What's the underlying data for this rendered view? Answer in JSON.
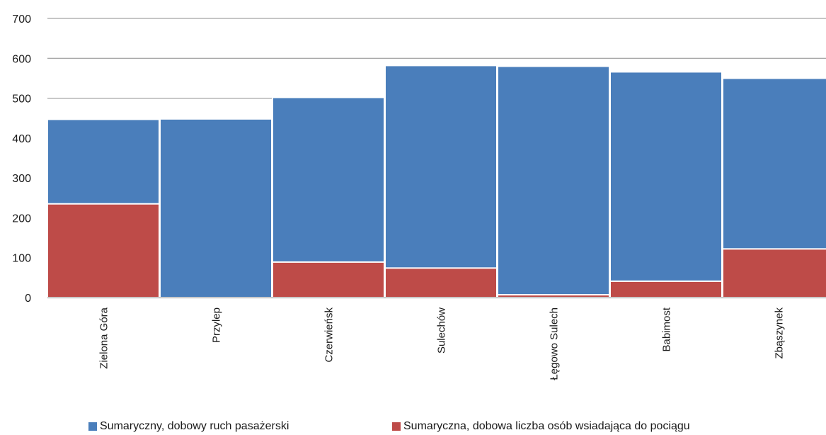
{
  "chart_data": {
    "type": "bar",
    "stacking": "overlapped",
    "categories": [
      "Zielona Góra",
      "Przylep",
      "Czerwieńsk",
      "Sulechów",
      "Łęgowo Sulech",
      "Babimost",
      "Zbąszynek"
    ],
    "series": [
      {
        "name": "Sumaryczny, dobowy ruch pasażerski",
        "color": "#4a7ebb",
        "values": [
          447,
          448,
          502,
          582,
          580,
          566,
          550
        ]
      },
      {
        "name": "Sumaryczna, dobowa liczba osób wsiadająca do pociągu",
        "color": "#be4b48",
        "values": [
          235,
          0,
          89,
          74,
          7,
          41,
          122
        ]
      }
    ],
    "ylim": [
      0,
      700
    ],
    "yticks": [
      0,
      100,
      200,
      300,
      400,
      500,
      600,
      700
    ],
    "grid": true,
    "legend_position": "bottom"
  }
}
